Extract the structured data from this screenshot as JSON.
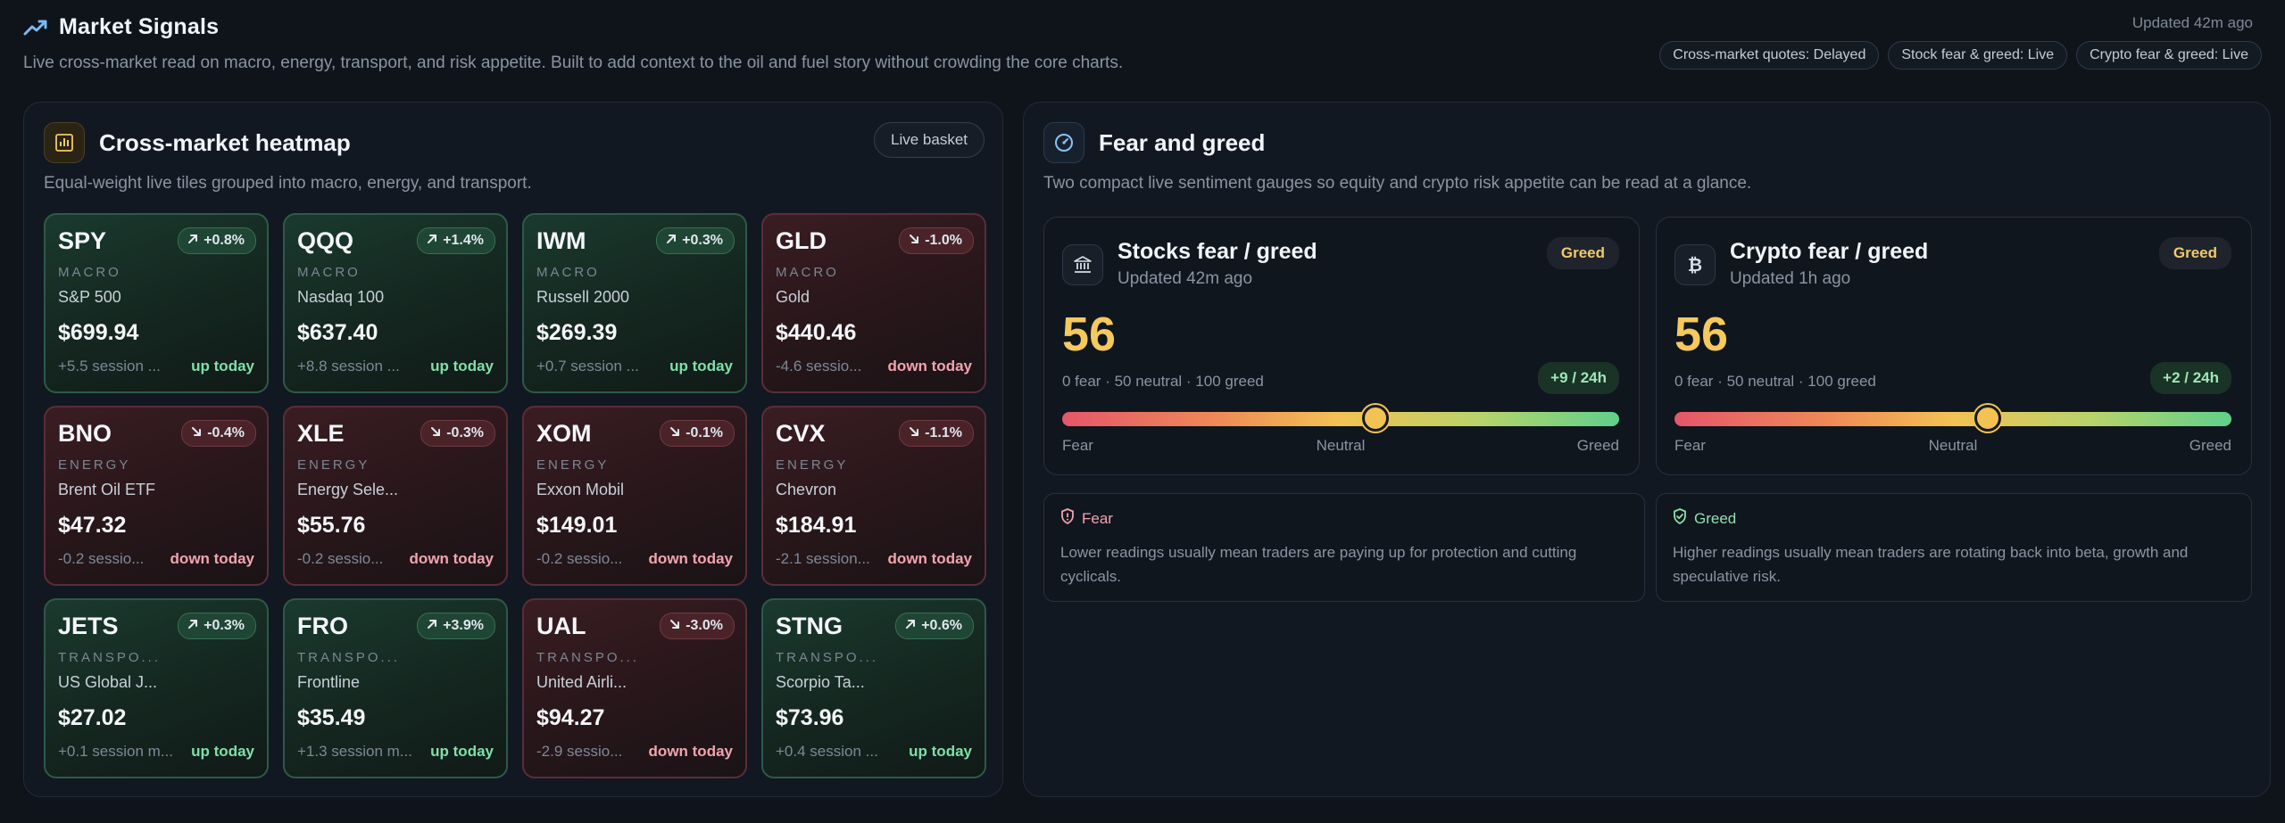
{
  "header": {
    "title": "Market Signals",
    "subtitle": "Live cross-market read on macro, energy, transport, and risk appetite. Built to add context to the oil and fuel story without crowding the core charts.",
    "updated": "Updated 42m ago",
    "badges": [
      "Cross-market quotes: Delayed",
      "Stock fear & greed: Live",
      "Crypto fear & greed: Live"
    ]
  },
  "heatmap": {
    "title": "Cross-market heatmap",
    "description": "Equal-weight live tiles grouped into macro, energy, and transport.",
    "basket_label": "Live basket",
    "tiles": [
      {
        "symbol": "SPY",
        "change": "+0.8%",
        "dir": "up",
        "sector": "MACRO",
        "name": "S&P 500",
        "price": "$699.94",
        "session": "+5.5 session ...",
        "status": "up today"
      },
      {
        "symbol": "QQQ",
        "change": "+1.4%",
        "dir": "up",
        "sector": "MACRO",
        "name": "Nasdaq 100",
        "price": "$637.40",
        "session": "+8.8 session ...",
        "status": "up today"
      },
      {
        "symbol": "IWM",
        "change": "+0.3%",
        "dir": "up",
        "sector": "MACRO",
        "name": "Russell 2000",
        "price": "$269.39",
        "session": "+0.7 session ...",
        "status": "up today"
      },
      {
        "symbol": "GLD",
        "change": "-1.0%",
        "dir": "down",
        "sector": "MACRO",
        "name": "Gold",
        "price": "$440.46",
        "session": "-4.6 sessio...",
        "status": "down today"
      },
      {
        "symbol": "BNO",
        "change": "-0.4%",
        "dir": "down",
        "sector": "ENERGY",
        "name": "Brent Oil ETF",
        "price": "$47.32",
        "session": "-0.2 sessio...",
        "status": "down today"
      },
      {
        "symbol": "XLE",
        "change": "-0.3%",
        "dir": "down",
        "sector": "ENERGY",
        "name": "Energy Sele...",
        "price": "$55.76",
        "session": "-0.2 sessio...",
        "status": "down today"
      },
      {
        "symbol": "XOM",
        "change": "-0.1%",
        "dir": "down",
        "sector": "ENERGY",
        "name": "Exxon Mobil",
        "price": "$149.01",
        "session": "-0.2 sessio...",
        "status": "down today"
      },
      {
        "symbol": "CVX",
        "change": "-1.1%",
        "dir": "down",
        "sector": "ENERGY",
        "name": "Chevron",
        "price": "$184.91",
        "session": "-2.1 session...",
        "status": "down today"
      },
      {
        "symbol": "JETS",
        "change": "+0.3%",
        "dir": "up",
        "sector": "TRANSPO...",
        "name": "US Global J...",
        "price": "$27.02",
        "session": "+0.1 session m...",
        "status": "up today"
      },
      {
        "symbol": "FRO",
        "change": "+3.9%",
        "dir": "up",
        "sector": "TRANSPO...",
        "name": "Frontline",
        "price": "$35.49",
        "session": "+1.3 session m...",
        "status": "up today"
      },
      {
        "symbol": "UAL",
        "change": "-3.0%",
        "dir": "down",
        "sector": "TRANSPO...",
        "name": "United Airli...",
        "price": "$94.27",
        "session": "-2.9 sessio...",
        "status": "down today"
      },
      {
        "symbol": "STNG",
        "change": "+0.6%",
        "dir": "up",
        "sector": "TRANSPO...",
        "name": "Scorpio Ta...",
        "price": "$73.96",
        "session": "+0.4 session ...",
        "status": "up today"
      }
    ]
  },
  "sentiment": {
    "title": "Fear and greed",
    "description": "Two compact live sentiment gauges so equity and crypto risk appetite can be read at a glance.",
    "gauges": [
      {
        "icon": "bank-icon",
        "title": "Stocks fear / greed",
        "updated": "Updated 42m ago",
        "status": "Greed",
        "value": "56",
        "value_num": 56,
        "scale": "0 fear · 50 neutral · 100 greed",
        "delta": "+9 / 24h",
        "labels": [
          "Fear",
          "Neutral",
          "Greed"
        ]
      },
      {
        "icon": "bitcoin-icon",
        "title": "Crypto fear / greed",
        "updated": "Updated 1h ago",
        "status": "Greed",
        "value": "56",
        "value_num": 56,
        "scale": "0 fear · 50 neutral · 100 greed",
        "delta": "+2 / 24h",
        "labels": [
          "Fear",
          "Neutral",
          "Greed"
        ]
      }
    ],
    "fear_card": {
      "label": "Fear",
      "text": "Lower readings usually mean traders are paying up for protection and cutting cyclicals."
    },
    "greed_card": {
      "label": "Greed",
      "text": "Higher readings usually mean traders are rotating back into beta, growth and speculative risk."
    },
    "colors": {
      "greed": "#f5c95d",
      "positive": "#7fe0a8",
      "negative": "#f2a4ae"
    }
  }
}
